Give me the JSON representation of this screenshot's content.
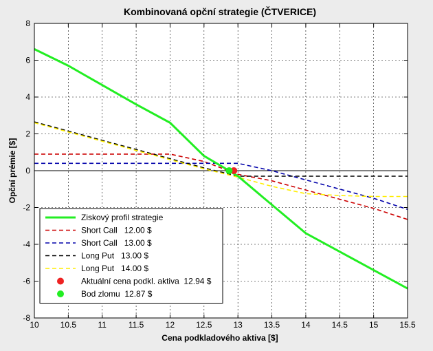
{
  "chart_data": {
    "type": "line",
    "title": "Kombinovaná opční strategie (ČTVERICE)",
    "xlabel": "Cena podkladového aktiva [$]",
    "ylabel": "Opční prémie [$]",
    "xlim": [
      10,
      15.5
    ],
    "ylim": [
      -8,
      8
    ],
    "xticks": [
      "10",
      "10.5",
      "11",
      "11.5",
      "12",
      "12.5",
      "13",
      "13.5",
      "14",
      "14.5",
      "15",
      "15.5"
    ],
    "yticks": [
      "-8",
      "-6",
      "-4",
      "-2",
      "0",
      "2",
      "4",
      "6",
      "8"
    ],
    "grid": true,
    "legend_position": "bottom-left",
    "series": [
      {
        "name": "Ziskový profil strategie",
        "color": "#22ee22",
        "style": "solid",
        "x": [
          10,
          10.5,
          11,
          11.5,
          12,
          12.5,
          12.87,
          13,
          13.5,
          14,
          14.5,
          15,
          15.5
        ],
        "y": [
          6.6,
          5.7,
          4.65,
          3.6,
          2.6,
          0.8,
          0.0,
          -0.3,
          -1.85,
          -3.4,
          -4.4,
          -5.4,
          -6.4
        ]
      },
      {
        "name": "Short Call   12.00 $",
        "color": "#cc0000",
        "style": "dashed",
        "x": [
          10,
          12,
          12.5,
          13,
          13.5,
          14,
          14.5,
          15,
          15.5
        ],
        "y": [
          0.9,
          0.9,
          0.5,
          -0.2,
          -0.55,
          -1.05,
          -1.55,
          -2.05,
          -2.65
        ]
      },
      {
        "name": "Short Call   13.00 $",
        "color": "#0000aa",
        "style": "dashed",
        "x": [
          10,
          13,
          13.5,
          14,
          14.5,
          15,
          15.5
        ],
        "y": [
          0.4,
          0.4,
          0.0,
          -0.5,
          -1.0,
          -1.5,
          -2.1
        ]
      },
      {
        "name": "Long Put   13.00 $",
        "color": "#000000",
        "style": "dashed",
        "x": [
          10,
          10.5,
          11,
          11.5,
          12,
          12.5,
          13,
          13.5,
          14,
          15.5
        ],
        "y": [
          2.65,
          2.15,
          1.65,
          1.15,
          0.65,
          0.15,
          -0.3,
          -0.3,
          -0.3,
          -0.3
        ]
      },
      {
        "name": "Long Put   14.00 $",
        "color": "#ffee00",
        "style": "dashed",
        "x": [
          10,
          10.5,
          11,
          11.5,
          12,
          12.5,
          13,
          13.5,
          14,
          14.5,
          15,
          15.5
        ],
        "y": [
          2.6,
          2.1,
          1.6,
          1.1,
          0.6,
          0.1,
          -0.35,
          -0.85,
          -1.25,
          -1.35,
          -1.4,
          -1.4
        ]
      },
      {
        "name": "Aktuální cena podkl. aktiva  12.94 $",
        "color": "#ee2222",
        "style": "marker",
        "x": [
          12.94
        ],
        "y": [
          0.0
        ]
      },
      {
        "name": "Bod zlomu  12.87 $",
        "color": "#22ee22",
        "style": "marker",
        "x": [
          12.87
        ],
        "y": [
          0.0
        ]
      }
    ]
  }
}
